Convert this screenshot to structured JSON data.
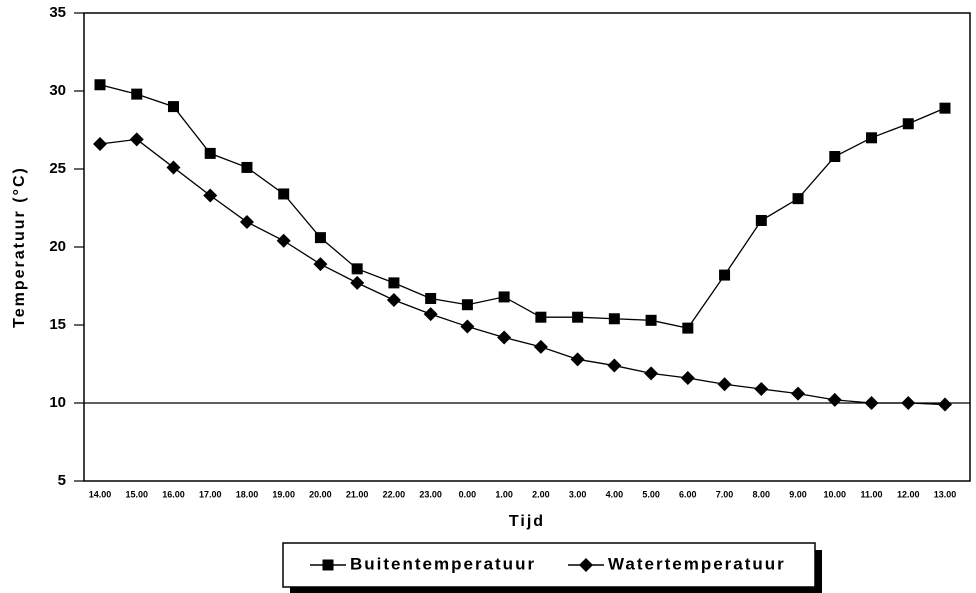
{
  "chart_data": {
    "type": "line",
    "xlabel": "Tijd",
    "ylabel": "Temperatuur (°C)",
    "categories": [
      "14.00",
      "15.00",
      "16.00",
      "17.00",
      "18.00",
      "19.00",
      "20.00",
      "21.00",
      "22.00",
      "23.00",
      "0.00",
      "1.00",
      "2.00",
      "3.00",
      "4.00",
      "5.00",
      "6.00",
      "7.00",
      "8.00",
      "9.00",
      "10.00",
      "11.00",
      "12.00",
      "13.00"
    ],
    "series": [
      {
        "name": "Buitentemperatuur",
        "color": "#000000",
        "marker": "square",
        "values": [
          30.4,
          29.8,
          29.0,
          26.0,
          25.1,
          23.4,
          20.6,
          18.6,
          17.7,
          16.7,
          16.3,
          16.8,
          15.5,
          15.5,
          15.4,
          15.3,
          14.8,
          18.2,
          21.7,
          23.1,
          25.8,
          27.0,
          27.9,
          28.9
        ]
      },
      {
        "name": "Watertemperatuur",
        "color": "#000000",
        "marker": "diamond",
        "values": [
          26.6,
          26.9,
          25.1,
          23.3,
          21.6,
          20.4,
          18.9,
          17.7,
          16.6,
          15.7,
          14.9,
          14.2,
          13.6,
          12.8,
          12.4,
          11.9,
          11.6,
          11.2,
          10.9,
          10.6,
          10.2,
          10.0,
          10.0,
          9.9
        ]
      }
    ],
    "ylim": [
      5,
      35
    ],
    "yticks": [
      5,
      10,
      15,
      20,
      25,
      30,
      35
    ],
    "reference_line": 10,
    "grid": false,
    "legend": "bottom"
  }
}
